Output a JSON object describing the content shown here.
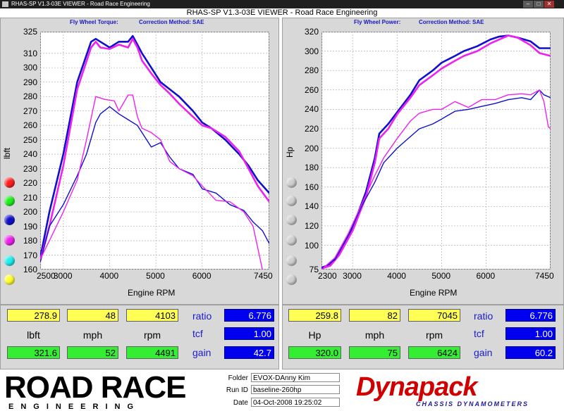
{
  "window": {
    "title": "RHAS-SP V1.3-03E VIEWER - Road Race Engineering",
    "app_title": "RHAS-SP V1.3-03E VIEWER - Road Race Engineering"
  },
  "torque_panel": {
    "label": "Fly Wheel Torque:",
    "correction": "Correction Method: SAE"
  },
  "power_panel": {
    "label": "Fly Wheel Power:",
    "correction": "Correction Method: SAE"
  },
  "colors": {
    "red": "#ff2020",
    "green": "#22ee22",
    "blue": "#1010cc",
    "magenta": "#ee22ee",
    "cyan": "#22eeee",
    "yellow": "#ffff33"
  },
  "chart_data": [
    {
      "type": "line",
      "title": "",
      "xlabel": "Engine RPM",
      "ylabel": "lbft",
      "xlim": [
        2500,
        7450
      ],
      "ylim": [
        160,
        325
      ],
      "x_ticks": [
        "2500",
        "3000",
        "4000",
        "5000",
        "6000",
        "7450"
      ],
      "y_ticks": [
        "325",
        "310",
        "300",
        "290",
        "280",
        "270",
        "260",
        "250",
        "240",
        "230",
        "220",
        "210",
        "200",
        "190",
        "180",
        "170",
        "160"
      ],
      "grid": true,
      "series": [
        {
          "color": "blue",
          "x": [
            2500,
            2700,
            3000,
            3300,
            3600,
            3700,
            3800,
            4000,
            4200,
            4400,
            4500,
            4600,
            4700,
            4900,
            5100,
            5300,
            5500,
            5800,
            6000,
            6200,
            6500,
            6800,
            7000,
            7200,
            7450
          ],
          "y": [
            168,
            200,
            240,
            290,
            318,
            320,
            318,
            314,
            318,
            318,
            322,
            316,
            310,
            300,
            290,
            285,
            280,
            270,
            262,
            258,
            250,
            240,
            232,
            222,
            213
          ]
        },
        {
          "color": "magenta",
          "x": [
            2500,
            2700,
            3000,
            3300,
            3600,
            3700,
            3800,
            4000,
            4200,
            4400,
            4500,
            4600,
            4700,
            4900,
            5100,
            5300,
            5500,
            5800,
            6000,
            6200,
            6500,
            6800,
            7000,
            7200,
            7450
          ],
          "y": [
            166,
            190,
            232,
            285,
            314,
            318,
            314,
            313,
            316,
            314,
            320,
            314,
            305,
            296,
            288,
            282,
            275,
            266,
            260,
            258,
            252,
            242,
            230,
            218,
            207
          ]
        },
        {
          "color": "blue",
          "x": [
            2500,
            2700,
            3000,
            3300,
            3500,
            3700,
            3800,
            4000,
            4200,
            4400,
            4600,
            4700,
            4900,
            5100,
            5300,
            5500,
            5800,
            6000,
            6300,
            6600,
            6900,
            7100,
            7300,
            7450
          ],
          "y": [
            165,
            190,
            205,
            225,
            240,
            262,
            268,
            273,
            268,
            264,
            260,
            255,
            245,
            248,
            238,
            230,
            226,
            216,
            213,
            205,
            201,
            193,
            187,
            178
          ]
        },
        {
          "color": "magenta",
          "x": [
            2500,
            2700,
            3000,
            3300,
            3500,
            3700,
            3900,
            4100,
            4200,
            4400,
            4500,
            4600,
            4700,
            4900,
            5100,
            5300,
            5500,
            5800,
            6000,
            6300,
            6600,
            6900,
            7100,
            7300,
            7450
          ],
          "y": [
            167,
            180,
            200,
            222,
            250,
            280,
            278,
            277,
            270,
            281,
            281,
            266,
            258,
            255,
            250,
            235,
            230,
            225,
            218,
            208,
            207,
            200,
            190,
            160,
            150
          ]
        }
      ]
    },
    {
      "type": "line",
      "title": "",
      "xlabel": "Engine RPM",
      "ylabel": "Hp",
      "xlim": [
        2300,
        7450
      ],
      "ylim": [
        75,
        320
      ],
      "x_ticks": [
        "2300",
        "3000",
        "4000",
        "5000",
        "6000",
        "7450"
      ],
      "y_ticks": [
        "320",
        "300",
        "280",
        "260",
        "240",
        "220",
        "200",
        "180",
        "160",
        "140",
        "120",
        "100",
        "75"
      ],
      "grid": true,
      "series": [
        {
          "color": "blue",
          "x": [
            2300,
            2500,
            2700,
            3000,
            3300,
            3500,
            3600,
            3800,
            4000,
            4300,
            4500,
            4800,
            5000,
            5300,
            5500,
            5800,
            6100,
            6300,
            6500,
            6700,
            7000,
            7200,
            7450
          ],
          "y": [
            77,
            80,
            92,
            118,
            155,
            190,
            215,
            225,
            237,
            255,
            270,
            280,
            288,
            295,
            300,
            305,
            312,
            315,
            316,
            314,
            310,
            303,
            303
          ]
        },
        {
          "color": "magenta",
          "x": [
            2300,
            2500,
            2700,
            3000,
            3300,
            3500,
            3600,
            3800,
            4000,
            4300,
            4500,
            4800,
            5000,
            5300,
            5500,
            5800,
            6100,
            6300,
            6500,
            6700,
            7000,
            7200,
            7450
          ],
          "y": [
            76,
            79,
            90,
            115,
            150,
            185,
            210,
            220,
            235,
            252,
            265,
            275,
            282,
            290,
            295,
            300,
            308,
            312,
            316,
            314,
            306,
            298,
            295
          ]
        },
        {
          "color": "blue",
          "x": [
            2300,
            2600,
            2900,
            3200,
            3500,
            3700,
            4000,
            4300,
            4500,
            4800,
            5000,
            5300,
            5600,
            5900,
            6200,
            6500,
            6800,
            7000,
            7200,
            7300,
            7450
          ],
          "y": [
            76,
            85,
            110,
            140,
            165,
            185,
            200,
            212,
            220,
            225,
            230,
            238,
            240,
            243,
            246,
            250,
            252,
            250,
            260,
            255,
            252
          ]
        },
        {
          "color": "magenta",
          "x": [
            2300,
            2600,
            2900,
            3200,
            3500,
            3700,
            4000,
            4300,
            4500,
            4800,
            5000,
            5300,
            5600,
            5900,
            6200,
            6500,
            6800,
            7000,
            7200,
            7300,
            7400,
            7450
          ],
          "y": [
            75,
            87,
            112,
            142,
            172,
            190,
            210,
            228,
            236,
            240,
            240,
            248,
            242,
            250,
            250,
            255,
            256,
            255,
            260,
            248,
            222,
            220
          ]
        }
      ]
    }
  ],
  "torque_readout": {
    "row1": [
      "278.9",
      "48",
      "4103"
    ],
    "units": [
      "lbft",
      "mph",
      "rpm"
    ],
    "row2": [
      "321.6",
      "52",
      "4491"
    ],
    "params": [
      {
        "label": "ratio",
        "value": "6.776"
      },
      {
        "label": "tcf",
        "value": "1.00"
      },
      {
        "label": "gain",
        "value": "42.7"
      }
    ]
  },
  "power_readout": {
    "row1": [
      "259.8",
      "82",
      "7045"
    ],
    "units": [
      "Hp",
      "mph",
      "rpm"
    ],
    "row2": [
      "320.0",
      "75",
      "6424"
    ],
    "params": [
      {
        "label": "ratio",
        "value": "6.776"
      },
      {
        "label": "tcf",
        "value": "1.00"
      },
      {
        "label": "gain",
        "value": "60.2"
      }
    ]
  },
  "footer": {
    "logo_left_main": "ROAD RACE",
    "logo_left_sub": "ENGINEERING",
    "folder_label": "Folder",
    "folder_value": "EVOX-DAnny Kim",
    "runid_label": "Run ID",
    "runid_value": "baseline-260hp",
    "date_label": "Date",
    "date_value": "04-Oct-2008  19:25:02",
    "logo_right_main": "Dynapack",
    "logo_right_sub": "CHASSIS DYNAMOMETERS"
  }
}
